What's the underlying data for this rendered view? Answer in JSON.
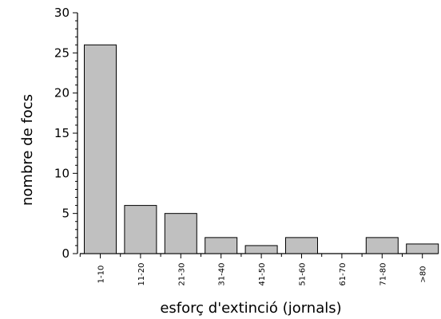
{
  "chart_data": {
    "type": "bar",
    "categories": [
      "1-10",
      "11-20",
      "21-30",
      "31-40",
      "41-50",
      "51-60",
      "61-70",
      "71-80",
      ">80"
    ],
    "values": [
      26,
      6,
      5,
      2,
      1,
      2,
      0,
      2,
      1.2
    ],
    "title": "",
    "xlabel": "esforç d'extinció (jornals)",
    "ylabel": "nombre de focs",
    "ylim": [
      0,
      30
    ],
    "yticks": [
      0,
      5,
      10,
      15,
      20,
      25,
      30
    ],
    "grid": false,
    "bar_color": "#c0c0c0",
    "edge_color": "#000000"
  }
}
